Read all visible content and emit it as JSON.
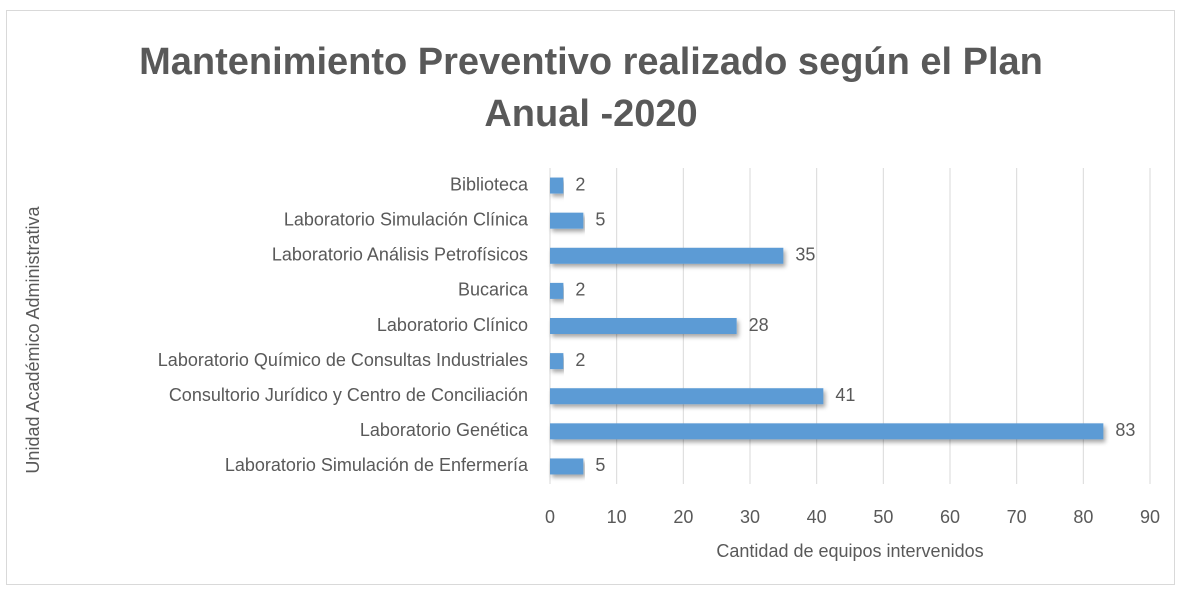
{
  "chart_data": {
    "type": "barh",
    "title": "Mantenimiento Preventivo realizado según el Plan Anual -2020",
    "x_label": "Cantidad de equipos intervenidos",
    "y_label": "Unidad Académico Administrativa",
    "categories": [
      "Biblioteca",
      "Laboratorio Simulación Clínica",
      "Laboratorio Análisis Petrofísicos",
      "Bucarica",
      "Laboratorio Clínico",
      "Laboratorio Químico de Consultas Industriales",
      "Consultorio Jurídico y Centro de Conciliación",
      "Laboratorio Genética",
      "Laboratorio Simulación de Enfermería"
    ],
    "values": [
      2,
      5,
      35,
      2,
      28,
      2,
      41,
      83,
      5
    ],
    "color": "#5b9bd5",
    "xlim": [
      0,
      90
    ],
    "xticks": [
      0,
      10,
      20,
      30,
      40,
      50,
      60,
      70,
      80,
      90
    ],
    "grid": true
  }
}
